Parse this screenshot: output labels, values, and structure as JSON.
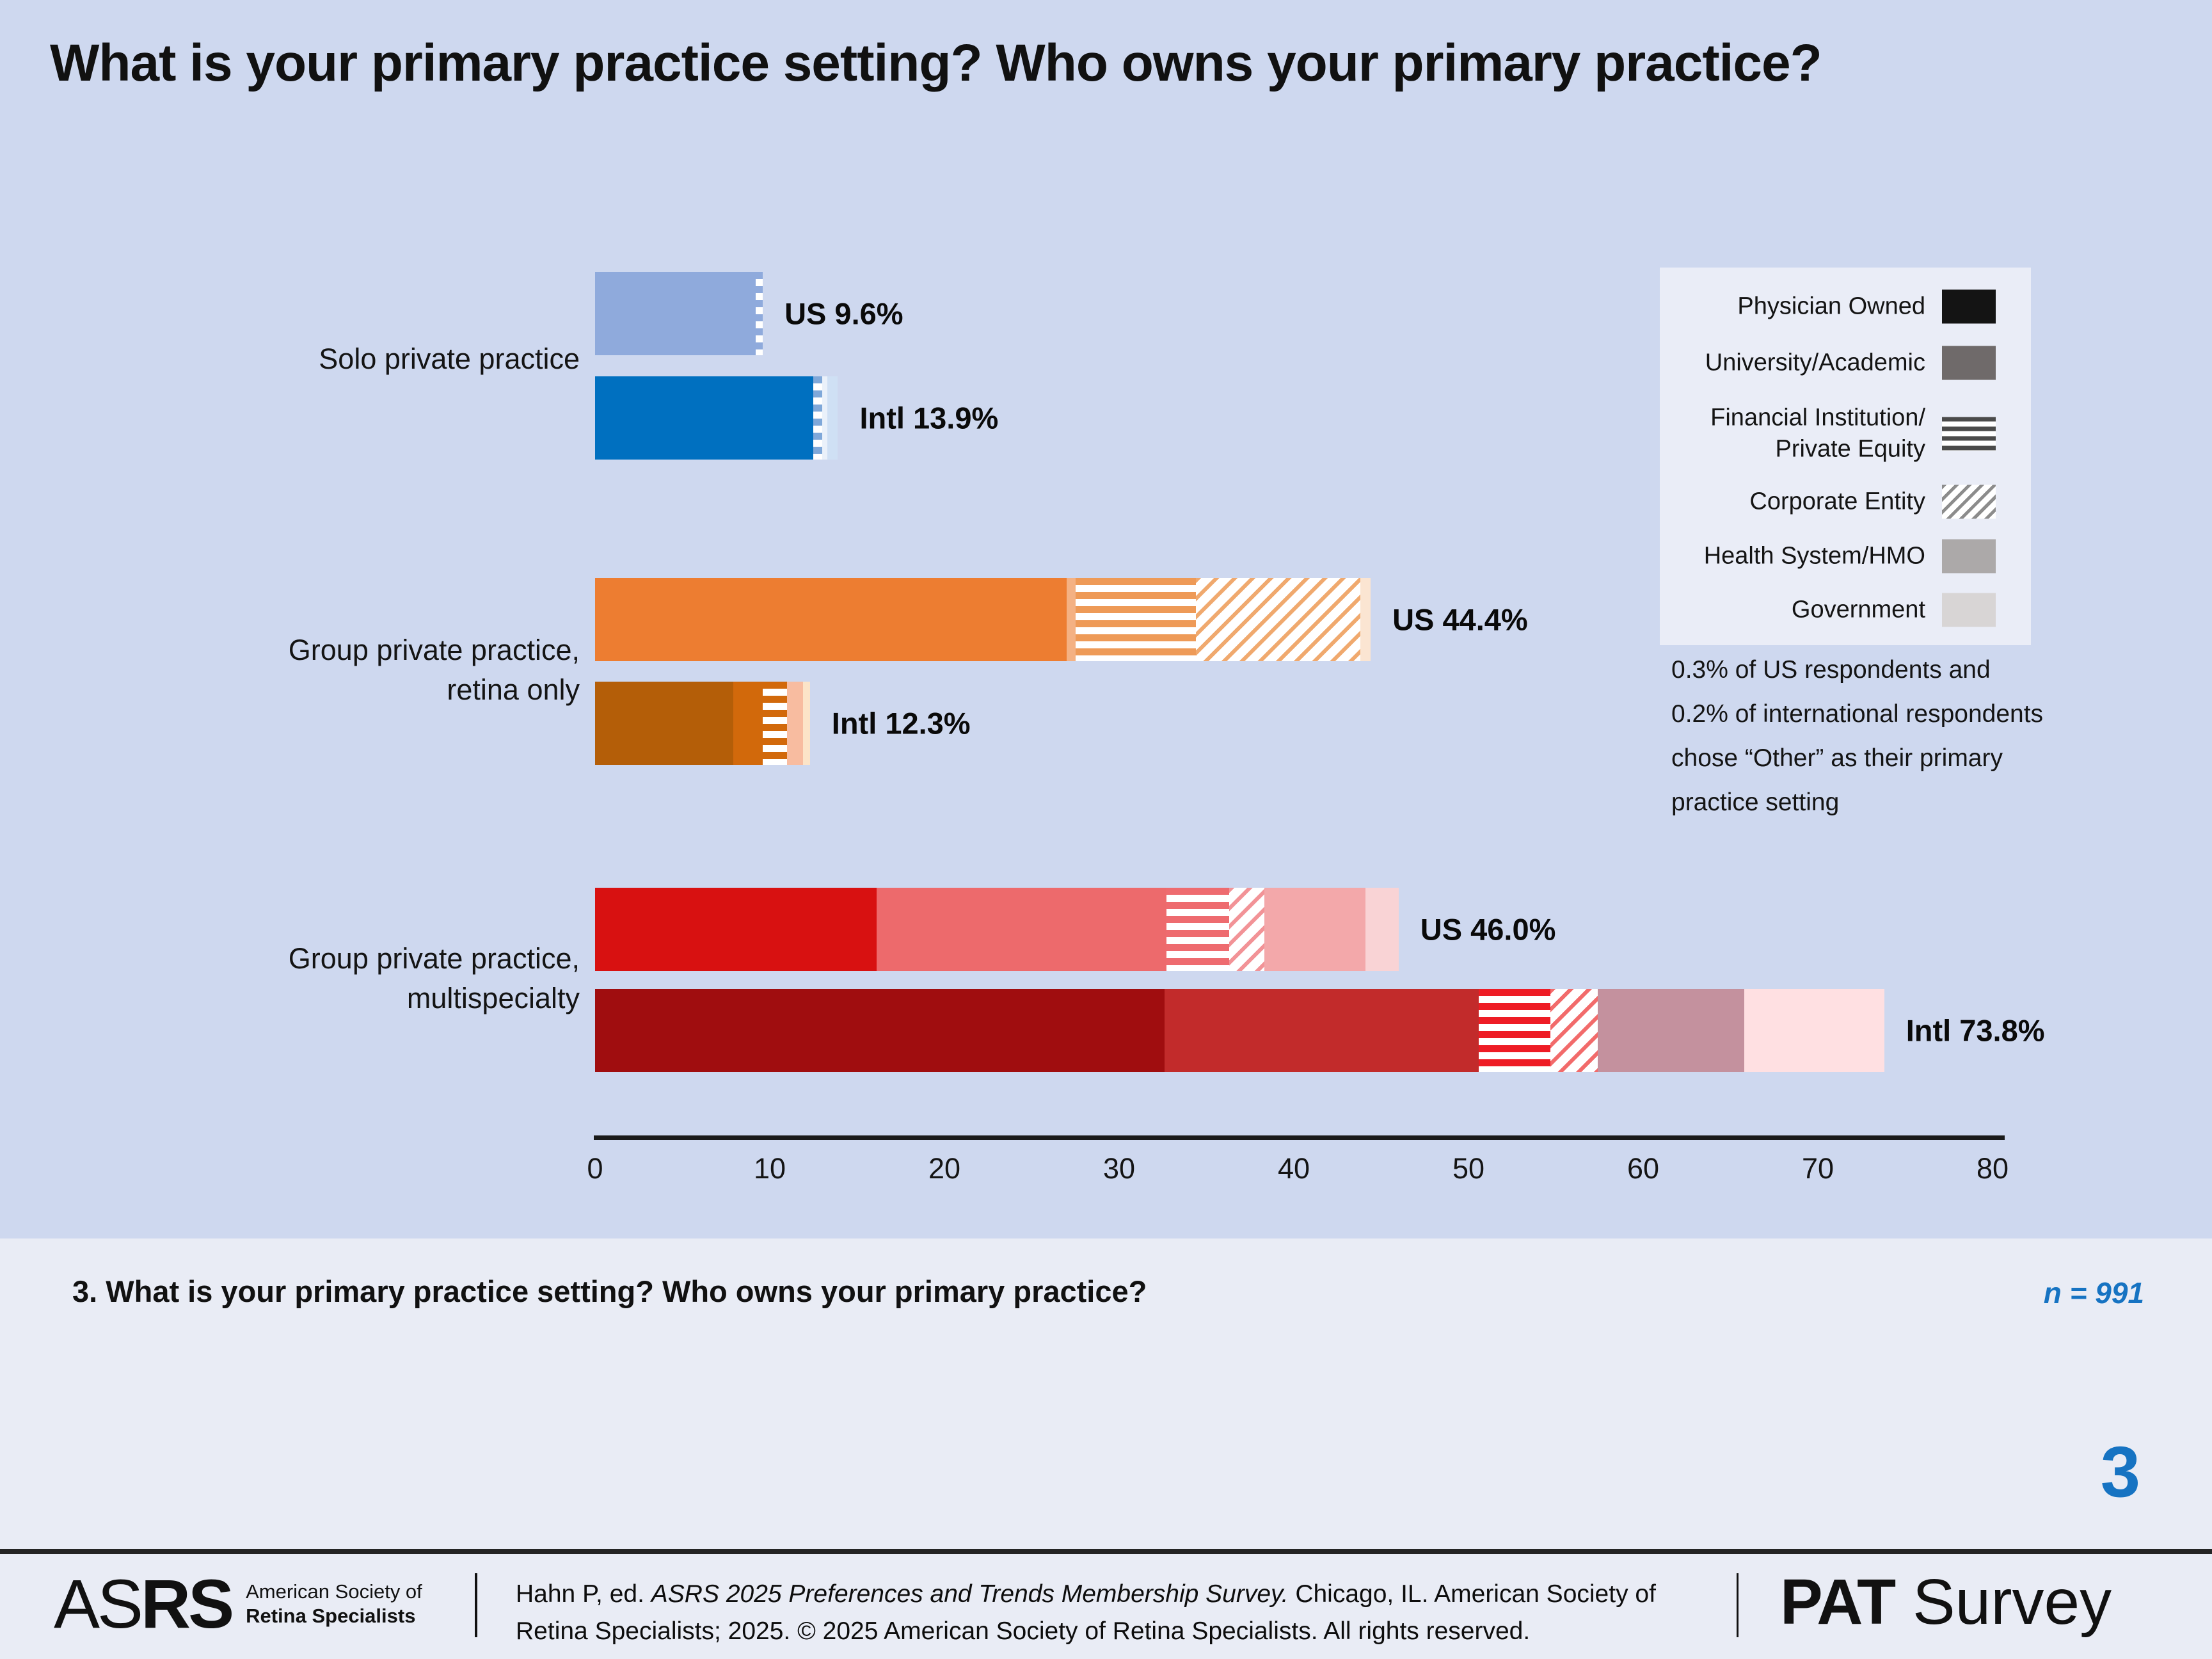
{
  "title": "What is your primary practice setting? Who owns your primary practice?",
  "colors": {
    "page_bg": "#CED8EF",
    "panel_bg": "#E9ECF5",
    "legend_bg": "#EAEDF7",
    "accent_blue": "#1673C2",
    "axis": "#1A1A1A"
  },
  "chart_data": {
    "type": "bar",
    "orientation": "horizontal",
    "stacked": true,
    "x_axis": {
      "min": 0,
      "max": 80,
      "ticks": [
        0,
        10,
        20,
        30,
        40,
        50,
        60,
        70,
        80
      ],
      "grid": false
    },
    "legend_position": "right",
    "legend": [
      {
        "label": "Physician Owned",
        "pattern": "solid",
        "color": "#141414"
      },
      {
        "label": "University/Academic",
        "pattern": "solid",
        "color": "#6F6A6A"
      },
      {
        "label": "Financial Institution/\nPrivate Equity",
        "pattern": "hstripe",
        "color": "#4A4A4A"
      },
      {
        "label": "Corporate Entity",
        "pattern": "dstripe",
        "color": "#8C8C8C"
      },
      {
        "label": "Health System/HMO",
        "pattern": "solid",
        "color": "#ACA9A9"
      },
      {
        "label": "Government",
        "pattern": "solid",
        "color": "#D8D5D5"
      }
    ],
    "legend_note": "0.3% of US respondents and\n0.2% of international respondents\nchose “Other” as their primary\npractice setting",
    "groups": [
      {
        "category": "Solo private practice",
        "bars": [
          {
            "region": "US",
            "label": "US 9.6%",
            "total": 9.6,
            "segments": [
              {
                "owner": "Physician Owned",
                "value": 9.2,
                "fill": "solid",
                "color": "#8FAADC"
              },
              {
                "owner": "Financial Institution/Private Equity",
                "value": 0.4,
                "fill": "hstripe",
                "color": "#8FAADC"
              }
            ]
          },
          {
            "region": "Intl",
            "label": "Intl 13.9%",
            "total": 13.9,
            "segments": [
              {
                "owner": "Physician Owned",
                "value": 12.5,
                "fill": "solid",
                "color": "#0070C0"
              },
              {
                "owner": "Financial Institution/Private Equity",
                "value": 0.5,
                "fill": "hstripe",
                "color": "#7FA8D9"
              },
              {
                "owner": "Health System/HMO",
                "value": 0.3,
                "fill": "solid",
                "color": "#EAF1FA"
              },
              {
                "owner": "Government",
                "value": 0.6,
                "fill": "solid",
                "color": "#CFE0F4"
              }
            ]
          }
        ]
      },
      {
        "category": "Group private practice,\nretina only",
        "bars": [
          {
            "region": "US",
            "label": "US 44.4%",
            "total": 44.4,
            "segments": [
              {
                "owner": "Physician Owned",
                "value": 27.0,
                "fill": "solid",
                "color": "#ED7D31"
              },
              {
                "owner": "University/Academic",
                "value": 0.5,
                "fill": "solid",
                "color": "#F4B183"
              },
              {
                "owner": "Financial Institution/Private Equity",
                "value": 6.9,
                "fill": "hstripe",
                "color": "#EE9A57"
              },
              {
                "owner": "Corporate Entity",
                "value": 9.4,
                "fill": "dstripe",
                "color": "#F0A96E"
              },
              {
                "owner": "Government",
                "value": 0.6,
                "fill": "solid",
                "color": "#FBE5D2"
              }
            ]
          },
          {
            "region": "Intl",
            "label": "Intl 12.3%",
            "total": 12.3,
            "segments": [
              {
                "owner": "Physician Owned",
                "value": 7.9,
                "fill": "solid",
                "color": "#B45E08"
              },
              {
                "owner": "University/Academic",
                "value": 1.7,
                "fill": "solid",
                "color": "#D2690B"
              },
              {
                "owner": "Financial Institution/Private Equity",
                "value": 1.4,
                "fill": "hstripe",
                "color": "#D2690B"
              },
              {
                "owner": "Health System/HMO",
                "value": 0.9,
                "fill": "solid",
                "color": "#F8BCA0"
              },
              {
                "owner": "Government",
                "value": 0.4,
                "fill": "solid",
                "color": "#FCE4C8"
              }
            ]
          }
        ]
      },
      {
        "category": "Group private practice,\nmultispecialty",
        "bars": [
          {
            "region": "US",
            "label": "US 46.0%",
            "total": 46.0,
            "segments": [
              {
                "owner": "Physician Owned",
                "value": 16.1,
                "fill": "solid",
                "color": "#D81111"
              },
              {
                "owner": "University/Academic",
                "value": 16.6,
                "fill": "solid",
                "color": "#ED6A6C"
              },
              {
                "owner": "Financial Institution/Private Equity",
                "value": 3.6,
                "fill": "hstripe",
                "color": "#EE6B6F"
              },
              {
                "owner": "Corporate Entity",
                "value": 2.0,
                "fill": "dstripe",
                "color": "#F29397"
              },
              {
                "owner": "Health System/HMO",
                "value": 5.8,
                "fill": "solid",
                "color": "#F3A8AA"
              },
              {
                "owner": "Government",
                "value": 1.9,
                "fill": "solid",
                "color": "#F9D3D5"
              }
            ]
          },
          {
            "region": "Intl",
            "label": "Intl 73.8%",
            "total": 73.8,
            "segments": [
              {
                "owner": "Physician Owned",
                "value": 32.6,
                "fill": "solid",
                "color": "#A00D0F"
              },
              {
                "owner": "University/Academic",
                "value": 18.0,
                "fill": "solid",
                "color": "#C22B2B"
              },
              {
                "owner": "Financial Institution/Private Equity",
                "value": 4.1,
                "fill": "hstripe",
                "color": "#EE1C25"
              },
              {
                "owner": "Corporate Entity",
                "value": 2.7,
                "fill": "dstripe",
                "color": "#F26B6B"
              },
              {
                "owner": "Health System/HMO",
                "value": 8.4,
                "fill": "solid",
                "color": "#C4919E"
              },
              {
                "owner": "Government",
                "value": 8.0,
                "fill": "solid",
                "color": "#FFE0E2"
              }
            ]
          }
        ]
      }
    ]
  },
  "bottom": {
    "question": "3. What is your primary practice setting? Who owns your primary practice?",
    "n_label": "n = 991"
  },
  "page_number": "3",
  "footer": {
    "asrs_light": "AS",
    "asrs_bold": "RS",
    "asrs_sub1": "American Society of",
    "asrs_sub2": "Retina Specialists",
    "cite_plain1": "Hahn P, ed. ",
    "cite_italic": "ASRS 2025 Preferences and Trends Membership Survey.",
    "cite_plain2": " Chicago, IL. American Society of Retina Specialists; 2025. © 2025 American Society of Retina Specialists. All rights reserved.",
    "pat_bold": "PAT",
    "pat_plain": " Survey"
  }
}
